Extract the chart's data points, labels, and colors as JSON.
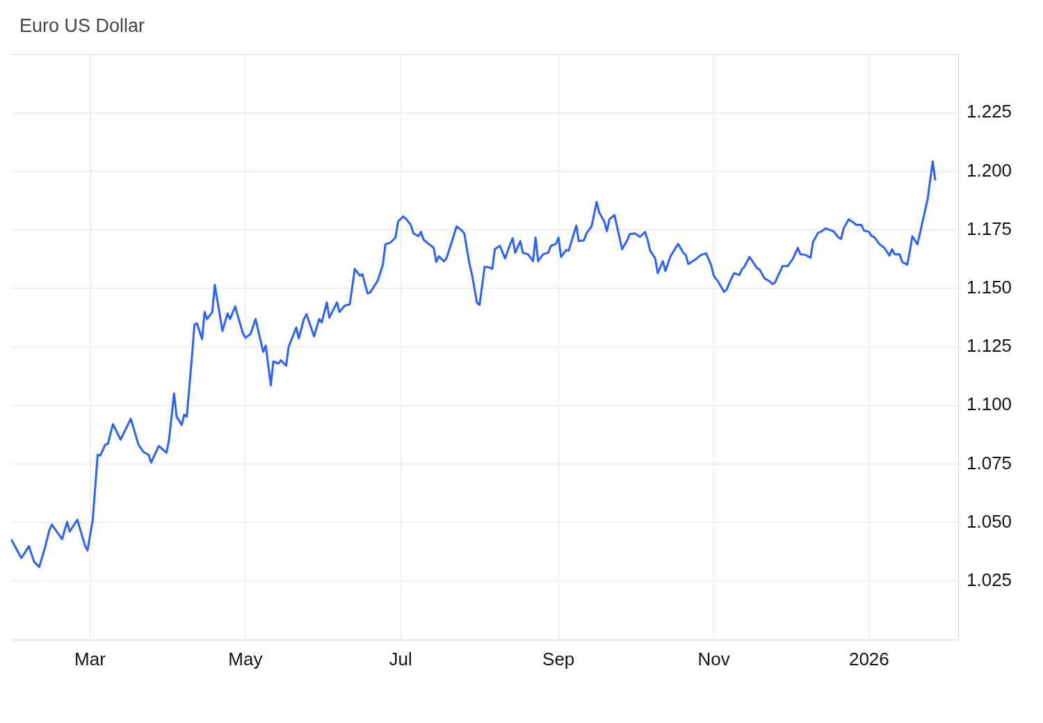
{
  "chart_data": {
    "type": "line",
    "title": "Euro US Dollar",
    "x": [
      "2025-01-29",
      "2025-02-02",
      "2025-02-05",
      "2025-02-07",
      "2025-02-09",
      "2025-02-11",
      "2025-02-13",
      "2025-02-14",
      "2025-02-18",
      "2025-02-20",
      "2025-02-21",
      "2025-02-24",
      "2025-02-27",
      "2025-02-28",
      "2025-03-02",
      "2025-03-04",
      "2025-03-05",
      "2025-03-07",
      "2025-03-08",
      "2025-03-10",
      "2025-03-13",
      "2025-03-17",
      "2025-03-20",
      "2025-03-22",
      "2025-03-24",
      "2025-03-25",
      "2025-03-28",
      "2025-03-31",
      "2025-04-01",
      "2025-04-03",
      "2025-04-04",
      "2025-04-06",
      "2025-04-07",
      "2025-04-08",
      "2025-04-10",
      "2025-04-11",
      "2025-04-12",
      "2025-04-14",
      "2025-04-15",
      "2025-04-16",
      "2025-04-18",
      "2025-04-19",
      "2025-04-22",
      "2025-04-24",
      "2025-04-25",
      "2025-04-27",
      "2025-04-28",
      "2025-04-30",
      "2025-05-01",
      "2025-05-03",
      "2025-05-05",
      "2025-05-08",
      "2025-05-09",
      "2025-05-11",
      "2025-05-12",
      "2025-05-14",
      "2025-05-15",
      "2025-05-17",
      "2025-05-18",
      "2025-05-21",
      "2025-05-22",
      "2025-05-24",
      "2025-05-25",
      "2025-05-28",
      "2025-05-30",
      "2025-05-31",
      "2025-06-02",
      "2025-06-03",
      "2025-06-06",
      "2025-06-07",
      "2025-06-09",
      "2025-06-11",
      "2025-06-13",
      "2025-06-15",
      "2025-06-16",
      "2025-06-18",
      "2025-06-19",
      "2025-06-22",
      "2025-06-24",
      "2025-06-25",
      "2025-06-27",
      "2025-06-29",
      "2025-06-30",
      "2025-07-02",
      "2025-07-03",
      "2025-07-05",
      "2025-07-06",
      "2025-07-08",
      "2025-07-09",
      "2025-07-10",
      "2025-07-12",
      "2025-07-14",
      "2025-07-15",
      "2025-07-16",
      "2025-07-18",
      "2025-07-19",
      "2025-07-21",
      "2025-07-23",
      "2025-07-25",
      "2025-07-26",
      "2025-07-28",
      "2025-07-29",
      "2025-07-31",
      "2025-08-01",
      "2025-08-03",
      "2025-08-05",
      "2025-08-06",
      "2025-08-07",
      "2025-08-09",
      "2025-08-11",
      "2025-08-13",
      "2025-08-14",
      "2025-08-15",
      "2025-08-17",
      "2025-08-18",
      "2025-08-20",
      "2025-08-22",
      "2025-08-23",
      "2025-08-24",
      "2025-08-26",
      "2025-08-28",
      "2025-08-29",
      "2025-08-31",
      "2025-09-01",
      "2025-09-02",
      "2025-09-04",
      "2025-09-05",
      "2025-09-08",
      "2025-09-09",
      "2025-09-11",
      "2025-09-12",
      "2025-09-14",
      "2025-09-16",
      "2025-09-17",
      "2025-09-19",
      "2025-09-20",
      "2025-09-21",
      "2025-09-23",
      "2025-09-26",
      "2025-09-28",
      "2025-09-29",
      "2025-10-01",
      "2025-10-03",
      "2025-10-05",
      "2025-10-06",
      "2025-10-07",
      "2025-10-09",
      "2025-10-10",
      "2025-10-12",
      "2025-10-13",
      "2025-10-15",
      "2025-10-18",
      "2025-10-20",
      "2025-10-21",
      "2025-10-22",
      "2025-10-25",
      "2025-10-27",
      "2025-10-29",
      "2025-10-31",
      "2025-11-01",
      "2025-11-03",
      "2025-11-05",
      "2025-11-06",
      "2025-11-08",
      "2025-11-09",
      "2025-11-11",
      "2025-11-12",
      "2025-11-13",
      "2025-11-15",
      "2025-11-16",
      "2025-11-18",
      "2025-11-19",
      "2025-11-21",
      "2025-11-23",
      "2025-11-24",
      "2025-11-25",
      "2025-11-27",
      "2025-11-28",
      "2025-11-29",
      "2025-11-30",
      "2025-12-02",
      "2025-12-04",
      "2025-12-05",
      "2025-12-07",
      "2025-12-09",
      "2025-12-10",
      "2025-12-12",
      "2025-12-13",
      "2025-12-15",
      "2025-12-18",
      "2025-12-20",
      "2025-12-21",
      "2025-12-22",
      "2025-12-24",
      "2025-12-26",
      "2025-12-27",
      "2025-12-29",
      "2025-12-30",
      "2026-01-01",
      "2026-01-02",
      "2026-01-03",
      "2026-01-05",
      "2026-01-07",
      "2026-01-09",
      "2026-01-10",
      "2026-01-11",
      "2026-01-13",
      "2026-01-14",
      "2026-01-16",
      "2026-01-17",
      "2026-01-18",
      "2026-01-20",
      "2026-01-24",
      "2026-01-26",
      "2026-01-27"
    ],
    "series": [
      {
        "color": "#2962ff",
        "values": [
          1.0429,
          1.0348,
          1.0399,
          1.0333,
          1.031,
          1.0381,
          1.0467,
          1.0491,
          1.0429,
          1.0503,
          1.0461,
          1.0512,
          1.0402,
          1.0381,
          1.0506,
          1.0789,
          1.0786,
          1.0833,
          1.0836,
          1.092,
          1.0854,
          1.0943,
          1.0833,
          1.0801,
          1.0789,
          1.0756,
          1.0827,
          1.0798,
          1.0851,
          1.1051,
          1.0952,
          1.0917,
          1.0961,
          1.0952,
          1.1205,
          1.1345,
          1.1351,
          1.1283,
          1.1399,
          1.1369,
          1.1399,
          1.1515,
          1.1318,
          1.1393,
          1.1369,
          1.1423,
          1.1384,
          1.131,
          1.1289,
          1.1304,
          1.1369,
          1.1229,
          1.1256,
          1.1086,
          1.1188,
          1.1179,
          1.1193,
          1.117,
          1.125,
          1.1333,
          1.1286,
          1.1369,
          1.139,
          1.1295,
          1.1369,
          1.1354,
          1.144,
          1.1375,
          1.144,
          1.1399,
          1.1426,
          1.1432,
          1.1583,
          1.1554,
          1.156,
          1.1479,
          1.1482,
          1.1533,
          1.1601,
          1.1688,
          1.1696,
          1.1717,
          1.1786,
          1.1807,
          1.1798,
          1.1771,
          1.1735,
          1.1723,
          1.1741,
          1.1708,
          1.169,
          1.1673,
          1.1613,
          1.1637,
          1.1616,
          1.1628,
          1.1696,
          1.1765,
          1.1747,
          1.1735,
          1.1607,
          1.156,
          1.1438,
          1.1429,
          1.1592,
          1.1589,
          1.1583,
          1.1667,
          1.1682,
          1.1628,
          1.1688,
          1.1714,
          1.1652,
          1.1702,
          1.1652,
          1.1646,
          1.1616,
          1.1717,
          1.1616,
          1.1646,
          1.1652,
          1.1682,
          1.169,
          1.1717,
          1.1634,
          1.1664,
          1.1661,
          1.1768,
          1.1702,
          1.1705,
          1.1735,
          1.1765,
          1.1869,
          1.1824,
          1.1786,
          1.1744,
          1.1795,
          1.1813,
          1.1667,
          1.1705,
          1.1732,
          1.1735,
          1.172,
          1.1741,
          1.1708,
          1.1661,
          1.1628,
          1.1565,
          1.1616,
          1.1574,
          1.1637,
          1.169,
          1.1652,
          1.1643,
          1.1604,
          1.1625,
          1.1643,
          1.1649,
          1.1598,
          1.1554,
          1.1524,
          1.1485,
          1.1494,
          1.1545,
          1.1565,
          1.1557,
          1.158,
          1.1592,
          1.1634,
          1.1619,
          1.1586,
          1.158,
          1.1542,
          1.153,
          1.1518,
          1.1524,
          1.1571,
          1.1595,
          1.1595,
          1.1595,
          1.1625,
          1.1673,
          1.1646,
          1.1643,
          1.1631,
          1.1699,
          1.1738,
          1.1741,
          1.1756,
          1.1744,
          1.1717,
          1.1711,
          1.1756,
          1.1795,
          1.178,
          1.1771,
          1.1771,
          1.1747,
          1.1741,
          1.1723,
          1.172,
          1.169,
          1.1673,
          1.164,
          1.1667,
          1.1646,
          1.1646,
          1.1613,
          1.1601,
          1.1658,
          1.1723,
          1.1688,
          1.1881,
          1.2042,
          1.1961
        ]
      }
    ],
    "xlim": [
      "2025-01-29",
      "2026-02-05"
    ],
    "xticks": [
      {
        "value": "2025-03-01",
        "label": "Mar"
      },
      {
        "value": "2025-05-01",
        "label": "May"
      },
      {
        "value": "2025-07-01",
        "label": "Jul"
      },
      {
        "value": "2025-09-01",
        "label": "Sep"
      },
      {
        "value": "2025-11-01",
        "label": "Nov"
      },
      {
        "value": "2026-01-01",
        "label": "2026"
      }
    ],
    "ylim": [
      1.0,
      1.25
    ],
    "yticks": [
      1.025,
      {
        "value": 1.05,
        "label": "1.050"
      },
      1.075,
      {
        "value": 1.1,
        "label": "1.100"
      },
      1.125,
      {
        "value": 1.15,
        "label": "1.150"
      },
      1.175,
      {
        "value": 1.2,
        "label": "1.200"
      },
      1.225
    ],
    "grid": true
  }
}
